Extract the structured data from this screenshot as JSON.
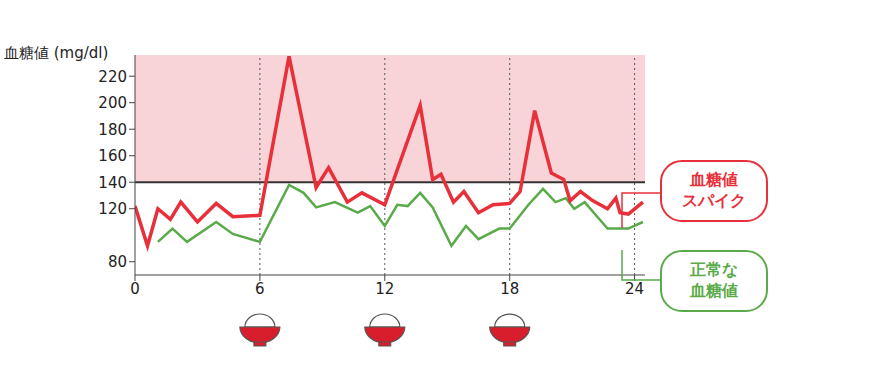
{
  "chart_data": {
    "type": "line",
    "y_label": "血糖値 (mg/dl)",
    "xlim": [
      0,
      24.5
    ],
    "xticks": [
      0,
      6,
      12,
      18,
      24
    ],
    "ylim": [
      70,
      236
    ],
    "yticks": [
      80,
      120,
      140,
      160,
      180,
      200,
      220
    ],
    "threshold": 140,
    "meal_times": [
      6,
      12,
      18
    ],
    "series": [
      {
        "name": "血糖値\nスパイク",
        "color": "#e8303a",
        "x": [
          0,
          0.6,
          1.1,
          1.7,
          2.2,
          3.0,
          3.9,
          4.7,
          6.0,
          7.4,
          8.7,
          9.3,
          10.2,
          10.9,
          12.0,
          13.7,
          14.3,
          14.7,
          15.3,
          15.8,
          16.5,
          17.2,
          18.0,
          18.5,
          19.2,
          20.0,
          20.6,
          20.9,
          21.4,
          22.0,
          22.7,
          23.1,
          23.3,
          23.7,
          24.4
        ],
        "values": [
          122,
          92,
          120,
          112,
          125,
          110,
          124,
          114,
          115,
          235,
          136,
          151,
          125,
          132,
          123,
          198,
          142,
          146,
          125,
          133,
          117,
          123,
          124,
          133,
          194,
          147,
          142,
          126,
          133,
          126,
          120,
          128,
          117,
          116,
          125
        ]
      },
      {
        "name": "正常な\n血糖値",
        "color": "#5aaa4a",
        "x": [
          1.1,
          1.8,
          2.5,
          3.9,
          4.7,
          6.0,
          7.4,
          8.1,
          8.7,
          9.6,
          10.7,
          11.3,
          12.0,
          12.6,
          13.1,
          13.7,
          14.3,
          15.2,
          15.9,
          16.5,
          17.5,
          18.0,
          18.9,
          19.6,
          20.2,
          20.7,
          21.1,
          21.6,
          22.7,
          23.7,
          24.4
        ],
        "values": [
          95,
          105,
          95,
          110,
          101,
          95,
          138,
          132,
          121,
          125,
          117,
          122,
          107,
          123,
          122,
          132,
          121,
          92,
          107,
          97,
          105,
          105,
          123,
          135,
          125,
          128,
          120,
          125,
          105,
          105,
          110
        ]
      }
    ]
  }
}
